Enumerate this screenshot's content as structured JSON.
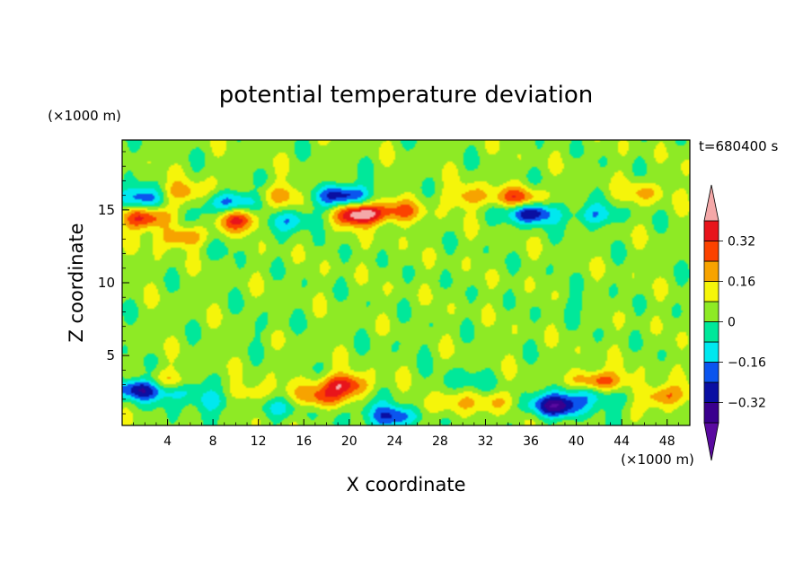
{
  "chart_data": {
    "type": "heatmap",
    "title": "potential temperature deviation",
    "xlabel": "X coordinate",
    "ylabel": "Z coordinate",
    "x_unit": "(×1000 m)",
    "y_unit": "(×1000 m)",
    "time_label": "t=680400 s",
    "xlim": [
      0,
      50
    ],
    "ylim": [
      0.2,
      19.8
    ],
    "x_ticks": [
      4,
      8,
      12,
      16,
      20,
      24,
      28,
      32,
      36,
      40,
      44,
      48
    ],
    "y_ticks": [
      5,
      10,
      15
    ],
    "colorbar": {
      "ticks": [
        "0.32",
        "0.16",
        "0",
        "−0.16",
        "−0.32"
      ],
      "tick_values": [
        0.32,
        0.16,
        0,
        -0.16,
        -0.32
      ],
      "levels": [
        -0.4,
        -0.32,
        -0.24,
        -0.16,
        -0.08,
        0,
        0.08,
        0.16,
        0.24,
        0.32,
        0.4
      ],
      "colors": [
        "#5a0aa0",
        "#3a008e",
        "#0a0fa2",
        "#0b55ee",
        "#00e8ef",
        "#00e89a",
        "#8eea25",
        "#f5f50a",
        "#f7a300",
        "#fb4300",
        "#e8141b",
        "#f4a8a8"
      ],
      "extend": "both"
    },
    "background_value": 0.04,
    "anomalies": [
      {
        "x": 19.5,
        "z": 16.0,
        "value": -0.36
      },
      {
        "x": 21.0,
        "z": 14.7,
        "value": 0.45
      },
      {
        "x": 24.5,
        "z": 14.9,
        "value": 0.18
      },
      {
        "x": 14.0,
        "z": 16.0,
        "value": 0.16
      },
      {
        "x": 1.5,
        "z": 15.8,
        "value": -0.26
      },
      {
        "x": 5.5,
        "z": 16.2,
        "value": 0.18
      },
      {
        "x": 10.0,
        "z": 15.6,
        "value": -0.26
      },
      {
        "x": 10.0,
        "z": 14.3,
        "value": 0.3
      },
      {
        "x": 2.0,
        "z": 14.4,
        "value": 0.3
      },
      {
        "x": 6.5,
        "z": 14.3,
        "value": -0.12
      },
      {
        "x": 5.0,
        "z": 13.1,
        "value": 0.2
      },
      {
        "x": 15.0,
        "z": 14.3,
        "value": -0.2
      },
      {
        "x": 9.5,
        "z": 12.5,
        "value": -0.04
      },
      {
        "x": 35.0,
        "z": 15.8,
        "value": 0.24
      },
      {
        "x": 30.5,
        "z": 15.9,
        "value": 0.16
      },
      {
        "x": 36.0,
        "z": 14.8,
        "value": -0.36
      },
      {
        "x": 41.5,
        "z": 14.6,
        "value": -0.18
      },
      {
        "x": 46.0,
        "z": 16.2,
        "value": 0.12
      },
      {
        "x": 1.5,
        "z": 2.7,
        "value": -0.38
      },
      {
        "x": 5.0,
        "z": 2.6,
        "value": -0.2
      },
      {
        "x": 4.0,
        "z": 3.1,
        "value": 0.2
      },
      {
        "x": 8.0,
        "z": 1.8,
        "value": -0.14
      },
      {
        "x": 11.5,
        "z": 2.4,
        "value": 0.12
      },
      {
        "x": 17.5,
        "z": 2.1,
        "value": 0.22
      },
      {
        "x": 19.5,
        "z": 3.0,
        "value": 0.32
      },
      {
        "x": 14.0,
        "z": 1.4,
        "value": -0.12
      },
      {
        "x": 21.5,
        "z": 1.4,
        "value": -0.08
      },
      {
        "x": 24.0,
        "z": 0.8,
        "value": -0.3
      },
      {
        "x": 28.0,
        "z": 1.6,
        "value": 0.14
      },
      {
        "x": 33.0,
        "z": 1.8,
        "value": 0.14
      },
      {
        "x": 38.5,
        "z": 1.5,
        "value": -0.34
      },
      {
        "x": 40.5,
        "z": 2.4,
        "value": -0.2
      },
      {
        "x": 42.0,
        "z": 3.2,
        "value": 0.3
      },
      {
        "x": 47.5,
        "z": 2.2,
        "value": 0.24
      },
      {
        "x": 36.0,
        "z": 1.6,
        "value": -0.1
      },
      {
        "x": 44.0,
        "z": 2.0,
        "value": -0.1
      },
      {
        "x": 30.0,
        "z": 3.2,
        "value": -0.1
      },
      {
        "x": 12.0,
        "z": 7.0,
        "value": -0.05
      },
      {
        "x": 25.0,
        "z": 6.0,
        "value": -0.04
      },
      {
        "x": 40.0,
        "z": 8.5,
        "value": -0.05
      }
    ]
  }
}
